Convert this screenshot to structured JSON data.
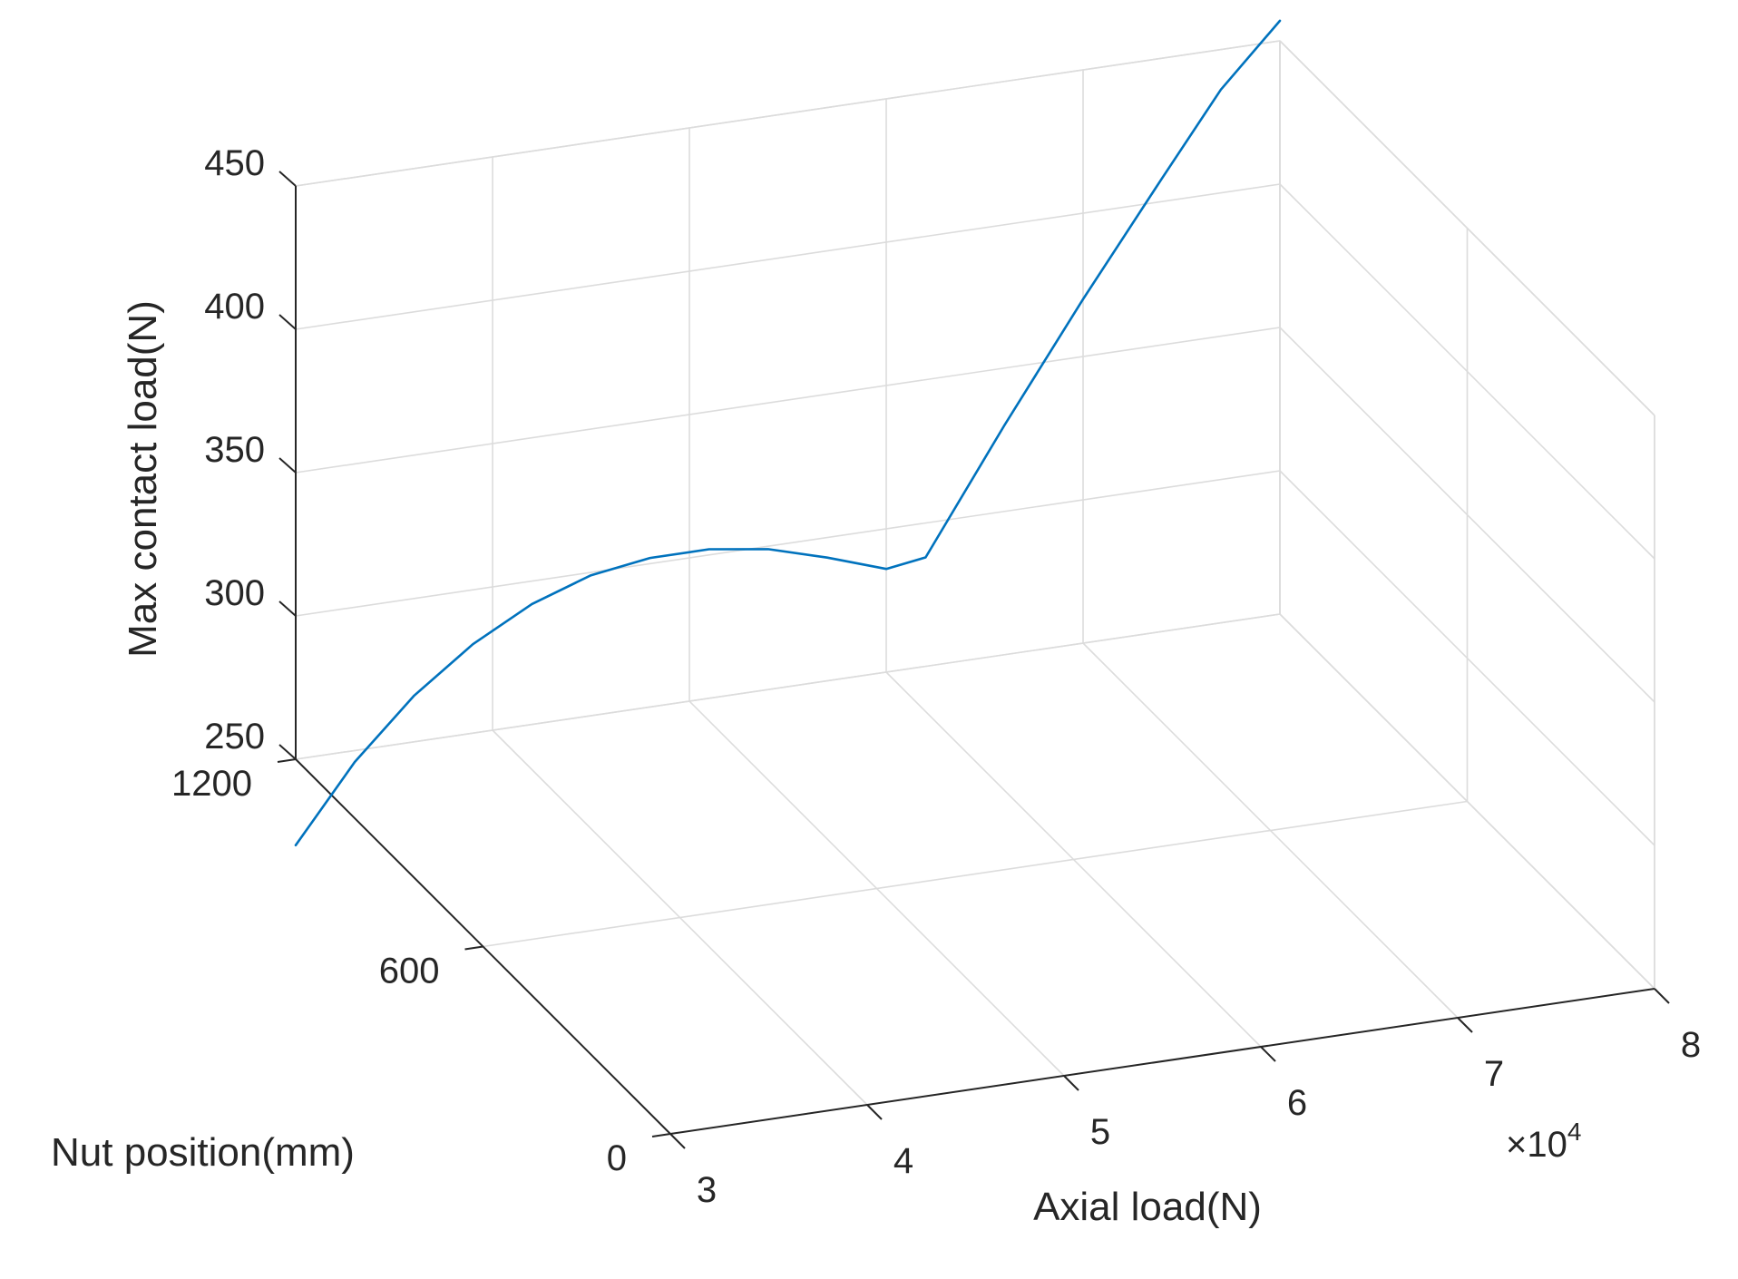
{
  "chart_data": {
    "type": "line",
    "projection": "3d",
    "xlabel": "Axial load(N)",
    "ylabel": "Nut position(mm)",
    "zlabel": "Max contact load(N)",
    "xlim": [
      30000,
      80000
    ],
    "ylim": [
      0,
      1200
    ],
    "zlim": [
      250,
      450
    ],
    "x_ticks": [
      30000,
      40000,
      50000,
      60000,
      70000,
      80000
    ],
    "x_tick_labels": [
      "3",
      "4",
      "5",
      "6",
      "7",
      "8"
    ],
    "x_exponent_label": "×10",
    "x_exponent_power": "4",
    "y_ticks": [
      0,
      600,
      1200
    ],
    "y_tick_labels": [
      "0",
      "600",
      "1200"
    ],
    "z_ticks": [
      250,
      300,
      350,
      400,
      450
    ],
    "z_tick_labels": [
      "250",
      "300",
      "350",
      "400",
      "450"
    ],
    "grid": true,
    "series": [
      {
        "color": "#0072BD",
        "points": [
          {
            "x": 30000,
            "y": 1200,
            "z": 220
          },
          {
            "x": 33000,
            "y": 1200,
            "z": 246
          },
          {
            "x": 36000,
            "y": 1200,
            "z": 266
          },
          {
            "x": 39000,
            "y": 1200,
            "z": 281
          },
          {
            "x": 42000,
            "y": 1200,
            "z": 292
          },
          {
            "x": 45000,
            "y": 1200,
            "z": 299
          },
          {
            "x": 48000,
            "y": 1200,
            "z": 302
          },
          {
            "x": 51000,
            "y": 1200,
            "z": 302
          },
          {
            "x": 54000,
            "y": 1200,
            "z": 299
          },
          {
            "x": 57000,
            "y": 1200,
            "z": 293
          },
          {
            "x": 60000,
            "y": 1200,
            "z": 286
          },
          {
            "x": 62000,
            "y": 1200,
            "z": 288
          },
          {
            "x": 66000,
            "y": 1200,
            "z": 330
          },
          {
            "x": 70000,
            "y": 1200,
            "z": 370
          },
          {
            "x": 74000,
            "y": 1200,
            "z": 408
          },
          {
            "x": 77000,
            "y": 1200,
            "z": 436
          },
          {
            "x": 80000,
            "y": 1200,
            "z": 457
          }
        ]
      }
    ]
  }
}
